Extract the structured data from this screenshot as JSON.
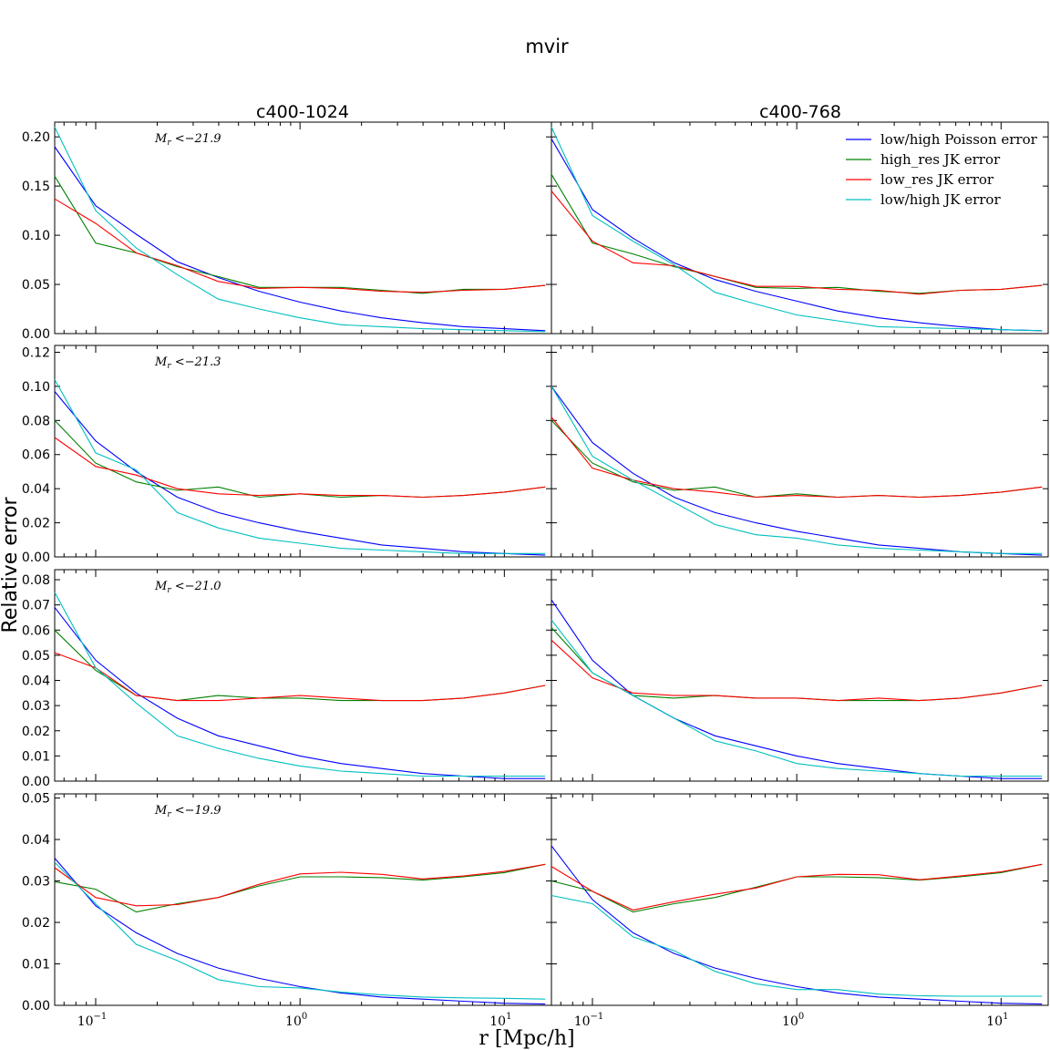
{
  "title": "mvir",
  "xlabel": "r  [Mpc/h]",
  "ylabel": "Relative error",
  "columns": [
    "c400-1024",
    "c400-768"
  ],
  "legend": {
    "placement": "top-right",
    "entries": [
      {
        "label": "low/high Poisson error",
        "color": "#0000ff"
      },
      {
        "label": "high_res JK error",
        "color": "#008000"
      },
      {
        "label": "low_res JK error",
        "color": "#ff0000"
      },
      {
        "label": "low/high JK error",
        "color": "#00bfbf"
      }
    ]
  },
  "chart_data": {
    "type": "line",
    "x_scale": "log",
    "xlim": [
      0.063,
      17
    ],
    "x_tick_labels": [
      "10^-1",
      "10^0",
      "10^1"
    ],
    "x": [
      0.063,
      0.1,
      0.158,
      0.251,
      0.398,
      0.631,
      1.0,
      1.585,
      2.512,
      3.981,
      6.31,
      10.0,
      15.85
    ],
    "rows": [
      {
        "annotation": "M_r < -21.9",
        "ylim": [
          0,
          0.215
        ],
        "yticks": [
          0.0,
          0.05,
          0.1,
          0.15,
          0.2
        ],
        "ytick_labels": [
          "0.00",
          "0.05",
          "0.10",
          "0.15",
          "0.20"
        ],
        "panels": [
          {
            "column": "c400-1024",
            "series": [
              {
                "name": "low/high Poisson error",
                "values": [
                  0.19,
                  0.13,
                  0.101,
                  0.073,
                  0.057,
                  0.043,
                  0.032,
                  0.023,
                  0.016,
                  0.011,
                  0.007,
                  0.005,
                  0.003
                ]
              },
              {
                "name": "high_res JK error",
                "values": [
                  0.16,
                  0.092,
                  0.082,
                  0.068,
                  0.058,
                  0.047,
                  0.047,
                  0.047,
                  0.044,
                  0.041,
                  0.045,
                  0.045,
                  0.049
                ]
              },
              {
                "name": "low_res JK error",
                "values": [
                  0.137,
                  0.112,
                  0.082,
                  0.069,
                  0.053,
                  0.046,
                  0.047,
                  0.046,
                  0.043,
                  0.042,
                  0.044,
                  0.045,
                  0.049
                ]
              },
              {
                "name": "low/high JK error",
                "values": [
                  0.21,
                  0.125,
                  0.087,
                  0.06,
                  0.035,
                  0.025,
                  0.016,
                  0.009,
                  0.007,
                  0.005,
                  0.004,
                  0.003,
                  0.002
                ]
              }
            ]
          },
          {
            "column": "c400-768",
            "series": [
              {
                "name": "low/high Poisson error",
                "values": [
                  0.198,
                  0.126,
                  0.097,
                  0.072,
                  0.055,
                  0.043,
                  0.033,
                  0.023,
                  0.016,
                  0.011,
                  0.007,
                  0.004,
                  0.003
                ]
              },
              {
                "name": "high_res JK error",
                "values": [
                  0.162,
                  0.092,
                  0.081,
                  0.068,
                  0.058,
                  0.047,
                  0.046,
                  0.047,
                  0.043,
                  0.041,
                  0.044,
                  0.045,
                  0.049
                ]
              },
              {
                "name": "low_res JK error",
                "values": [
                  0.145,
                  0.094,
                  0.072,
                  0.069,
                  0.058,
                  0.048,
                  0.048,
                  0.045,
                  0.044,
                  0.04,
                  0.044,
                  0.045,
                  0.049
                ]
              },
              {
                "name": "low/high JK error",
                "values": [
                  0.21,
                  0.12,
                  0.094,
                  0.07,
                  0.042,
                  0.03,
                  0.019,
                  0.013,
                  0.007,
                  0.006,
                  0.005,
                  0.004,
                  0.003
                ]
              }
            ]
          }
        ]
      },
      {
        "annotation": "M_r < -21.3",
        "ylim": [
          0,
          0.124
        ],
        "yticks": [
          0.0,
          0.02,
          0.04,
          0.06,
          0.08,
          0.1,
          0.12
        ],
        "ytick_labels": [
          "0.00",
          "0.02",
          "0.04",
          "0.06",
          "0.08",
          "0.10",
          "0.12"
        ],
        "panels": [
          {
            "column": "c400-1024",
            "series": [
              {
                "name": "low/high Poisson error",
                "values": [
                  0.097,
                  0.068,
                  0.05,
                  0.035,
                  0.026,
                  0.02,
                  0.015,
                  0.011,
                  0.007,
                  0.005,
                  0.003,
                  0.002,
                  0.001
                ]
              },
              {
                "name": "high_res JK error",
                "values": [
                  0.08,
                  0.055,
                  0.044,
                  0.039,
                  0.041,
                  0.035,
                  0.037,
                  0.035,
                  0.036,
                  0.035,
                  0.036,
                  0.038,
                  0.041
                ]
              },
              {
                "name": "low_res JK error",
                "values": [
                  0.07,
                  0.053,
                  0.048,
                  0.04,
                  0.037,
                  0.036,
                  0.037,
                  0.036,
                  0.036,
                  0.035,
                  0.036,
                  0.038,
                  0.041
                ]
              },
              {
                "name": "low/high JK error",
                "values": [
                  0.104,
                  0.061,
                  0.051,
                  0.026,
                  0.017,
                  0.011,
                  0.008,
                  0.005,
                  0.004,
                  0.003,
                  0.002,
                  0.002,
                  0.002
                ]
              }
            ]
          },
          {
            "column": "c400-768",
            "series": [
              {
                "name": "low/high Poisson error",
                "values": [
                  0.1,
                  0.067,
                  0.049,
                  0.035,
                  0.026,
                  0.02,
                  0.015,
                  0.011,
                  0.007,
                  0.005,
                  0.003,
                  0.002,
                  0.001
                ]
              },
              {
                "name": "high_res JK error",
                "values": [
                  0.08,
                  0.055,
                  0.044,
                  0.039,
                  0.041,
                  0.035,
                  0.037,
                  0.035,
                  0.036,
                  0.035,
                  0.036,
                  0.038,
                  0.041
                ]
              },
              {
                "name": "low_res JK error",
                "values": [
                  0.082,
                  0.052,
                  0.045,
                  0.04,
                  0.038,
                  0.035,
                  0.036,
                  0.035,
                  0.036,
                  0.035,
                  0.036,
                  0.038,
                  0.041
                ]
              },
              {
                "name": "low/high JK error",
                "values": [
                  0.1,
                  0.059,
                  0.045,
                  0.032,
                  0.019,
                  0.013,
                  0.011,
                  0.007,
                  0.005,
                  0.004,
                  0.003,
                  0.002,
                  0.002
                ]
              }
            ]
          }
        ]
      },
      {
        "annotation": "M_r < -21.0",
        "ylim": [
          0,
          0.084
        ],
        "yticks": [
          0.0,
          0.01,
          0.02,
          0.03,
          0.04,
          0.05,
          0.06,
          0.07,
          0.08
        ],
        "ytick_labels": [
          "0.00",
          "0.01",
          "0.02",
          "0.03",
          "0.04",
          "0.05",
          "0.06",
          "0.07",
          "0.08"
        ],
        "panels": [
          {
            "column": "c400-1024",
            "series": [
              {
                "name": "low/high Poisson error",
                "values": [
                  0.069,
                  0.048,
                  0.035,
                  0.025,
                  0.018,
                  0.014,
                  0.01,
                  0.007,
                  0.005,
                  0.003,
                  0.002,
                  0.001,
                  0.001
                ]
              },
              {
                "name": "high_res JK error",
                "values": [
                  0.06,
                  0.044,
                  0.034,
                  0.032,
                  0.034,
                  0.033,
                  0.033,
                  0.032,
                  0.032,
                  0.032,
                  0.033,
                  0.035,
                  0.038
                ]
              },
              {
                "name": "low_res JK error",
                "values": [
                  0.051,
                  0.045,
                  0.034,
                  0.032,
                  0.032,
                  0.033,
                  0.034,
                  0.033,
                  0.032,
                  0.032,
                  0.033,
                  0.035,
                  0.038
                ]
              },
              {
                "name": "low/high JK error",
                "values": [
                  0.075,
                  0.045,
                  0.031,
                  0.018,
                  0.013,
                  0.009,
                  0.006,
                  0.004,
                  0.003,
                  0.002,
                  0.002,
                  0.002,
                  0.002
                ]
              }
            ]
          },
          {
            "column": "c400-768",
            "series": [
              {
                "name": "low/high Poisson error",
                "values": [
                  0.072,
                  0.048,
                  0.034,
                  0.025,
                  0.018,
                  0.014,
                  0.01,
                  0.007,
                  0.005,
                  0.003,
                  0.002,
                  0.001,
                  0.001
                ]
              },
              {
                "name": "high_res JK error",
                "values": [
                  0.061,
                  0.043,
                  0.034,
                  0.033,
                  0.034,
                  0.033,
                  0.033,
                  0.032,
                  0.032,
                  0.032,
                  0.033,
                  0.035,
                  0.038
                ]
              },
              {
                "name": "low_res JK error",
                "values": [
                  0.056,
                  0.041,
                  0.035,
                  0.034,
                  0.034,
                  0.033,
                  0.033,
                  0.032,
                  0.033,
                  0.032,
                  0.033,
                  0.035,
                  0.038
                ]
              },
              {
                "name": "low/high JK error",
                "values": [
                  0.064,
                  0.043,
                  0.034,
                  0.025,
                  0.016,
                  0.012,
                  0.007,
                  0.005,
                  0.004,
                  0.003,
                  0.002,
                  0.002,
                  0.002
                ]
              }
            ]
          }
        ]
      },
      {
        "annotation": "M_r < -19.9",
        "ylim": [
          0,
          0.051
        ],
        "yticks": [
          0.0,
          0.01,
          0.02,
          0.03,
          0.04,
          0.05
        ],
        "ytick_labels": [
          "0.00",
          "0.01",
          "0.02",
          "0.03",
          "0.04",
          "0.05"
        ],
        "panels": [
          {
            "column": "c400-1024",
            "series": [
              {
                "name": "low/high Poisson error",
                "values": [
                  0.0355,
                  0.024,
                  0.0175,
                  0.0125,
                  0.009,
                  0.0065,
                  0.0045,
                  0.003,
                  0.002,
                  0.0015,
                  0.001,
                  0.0005,
                  0.0003
                ]
              },
              {
                "name": "high_res JK error",
                "values": [
                  0.0298,
                  0.028,
                  0.0225,
                  0.0245,
                  0.026,
                  0.0288,
                  0.031,
                  0.031,
                  0.0308,
                  0.0302,
                  0.031,
                  0.032,
                  0.034
                ]
              },
              {
                "name": "low_res JK error",
                "values": [
                  0.0332,
                  0.026,
                  0.024,
                  0.0243,
                  0.026,
                  0.0292,
                  0.0317,
                  0.0321,
                  0.0316,
                  0.0305,
                  0.0312,
                  0.0323,
                  0.034
                ]
              },
              {
                "name": "low/high JK error",
                "values": [
                  0.0345,
                  0.0245,
                  0.0147,
                  0.0108,
                  0.0062,
                  0.0045,
                  0.0042,
                  0.0032,
                  0.0025,
                  0.002,
                  0.0018,
                  0.0017,
                  0.0015
                ]
              }
            ]
          },
          {
            "column": "c400-768",
            "series": [
              {
                "name": "low/high Poisson error",
                "values": [
                  0.0385,
                  0.0255,
                  0.0175,
                  0.0125,
                  0.009,
                  0.0065,
                  0.0045,
                  0.003,
                  0.002,
                  0.0015,
                  0.001,
                  0.0005,
                  0.0003
                ]
              },
              {
                "name": "high_res JK error",
                "values": [
                  0.03,
                  0.0275,
                  0.0225,
                  0.0245,
                  0.026,
                  0.0285,
                  0.031,
                  0.031,
                  0.0308,
                  0.0302,
                  0.031,
                  0.032,
                  0.034
                ]
              },
              {
                "name": "low_res JK error",
                "values": [
                  0.0335,
                  0.0275,
                  0.023,
                  0.025,
                  0.0268,
                  0.0283,
                  0.031,
                  0.0316,
                  0.0315,
                  0.0303,
                  0.0312,
                  0.0322,
                  0.034
                ]
              },
              {
                "name": "low/high JK error",
                "values": [
                  0.0265,
                  0.0245,
                  0.0165,
                  0.0132,
                  0.0082,
                  0.0052,
                  0.0038,
                  0.0038,
                  0.0027,
                  0.0023,
                  0.0022,
                  0.0022,
                  0.0022
                ]
              }
            ]
          }
        ]
      }
    ]
  }
}
